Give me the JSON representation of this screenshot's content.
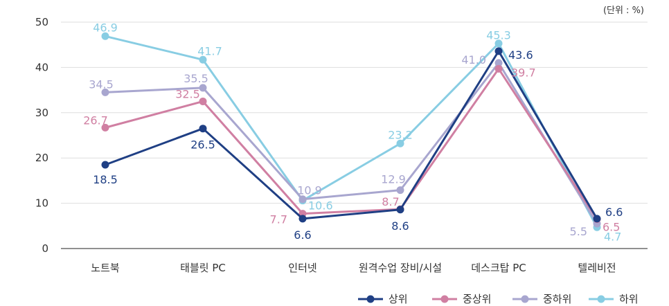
{
  "chart_data": {
    "type": "line",
    "unit_label": "(단위 : %)",
    "categories": [
      "노트북",
      "태블릿 PC",
      "인터넷",
      "원격수업 장비/시설",
      "데스크탑 PC",
      "텔레비전"
    ],
    "ylim": [
      0,
      50
    ],
    "yticks": [
      0,
      10,
      20,
      30,
      40,
      50
    ],
    "grid": true,
    "legend_position": "bottom-right",
    "series": [
      {
        "name": "상위",
        "color": "#1f3f84",
        "values": [
          18.5,
          26.5,
          6.6,
          8.6,
          43.6,
          6.6
        ]
      },
      {
        "name": "중상위",
        "color": "#d07fa2",
        "values": [
          26.7,
          32.5,
          7.7,
          8.7,
          39.7,
          6.5
        ]
      },
      {
        "name": "중하위",
        "color": "#a8a6cf",
        "values": [
          34.5,
          35.5,
          10.9,
          12.9,
          41.0,
          5.5
        ]
      },
      {
        "name": "하위",
        "color": "#88cde3",
        "values": [
          46.9,
          41.7,
          10.6,
          23.2,
          45.3,
          4.7
        ]
      }
    ]
  }
}
